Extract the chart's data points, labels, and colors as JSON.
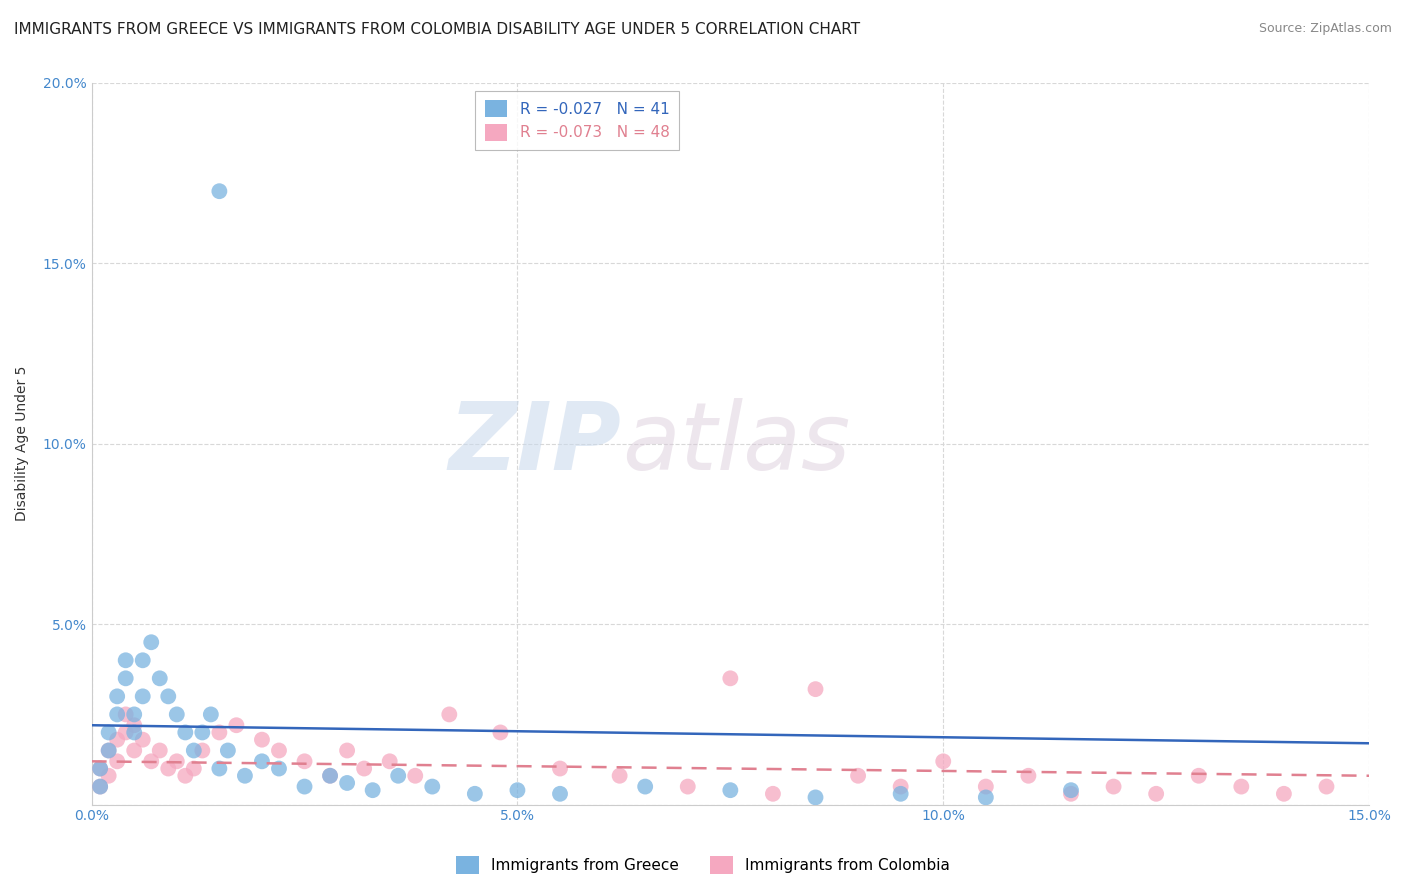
{
  "title": "IMMIGRANTS FROM GREECE VS IMMIGRANTS FROM COLOMBIA DISABILITY AGE UNDER 5 CORRELATION CHART",
  "source": "Source: ZipAtlas.com",
  "ylabel": "Disability Age Under 5",
  "xlim": [
    0,
    0.15
  ],
  "ylim": [
    0,
    0.2
  ],
  "xticks": [
    0.0,
    0.05,
    0.1,
    0.15
  ],
  "xtick_labels": [
    "0.0%",
    "5.0%",
    "10.0%",
    "15.0%"
  ],
  "yticks": [
    0.0,
    0.05,
    0.1,
    0.15,
    0.2
  ],
  "ytick_labels": [
    "",
    "5.0%",
    "10.0%",
    "15.0%",
    "20.0%"
  ],
  "greece_color": "#7ab3e0",
  "colombia_color": "#f5a8c0",
  "greece_line_color": "#3366bb",
  "colombia_line_color": "#e08090",
  "greece_R": -0.027,
  "greece_N": 41,
  "colombia_R": -0.073,
  "colombia_N": 48,
  "greece_scatter_x": [
    0.001,
    0.001,
    0.002,
    0.002,
    0.003,
    0.003,
    0.004,
    0.004,
    0.005,
    0.005,
    0.006,
    0.006,
    0.007,
    0.008,
    0.009,
    0.01,
    0.011,
    0.012,
    0.013,
    0.014,
    0.015,
    0.016,
    0.018,
    0.02,
    0.022,
    0.025,
    0.028,
    0.03,
    0.033,
    0.036,
    0.04,
    0.045,
    0.05,
    0.055,
    0.065,
    0.075,
    0.085,
    0.095,
    0.105,
    0.115,
    0.015
  ],
  "greece_scatter_y": [
    0.005,
    0.01,
    0.015,
    0.02,
    0.025,
    0.03,
    0.035,
    0.04,
    0.02,
    0.025,
    0.03,
    0.04,
    0.045,
    0.035,
    0.03,
    0.025,
    0.02,
    0.015,
    0.02,
    0.025,
    0.01,
    0.015,
    0.008,
    0.012,
    0.01,
    0.005,
    0.008,
    0.006,
    0.004,
    0.008,
    0.005,
    0.003,
    0.004,
    0.003,
    0.005,
    0.004,
    0.002,
    0.003,
    0.002,
    0.004,
    0.17
  ],
  "colombia_scatter_x": [
    0.001,
    0.001,
    0.002,
    0.002,
    0.003,
    0.003,
    0.004,
    0.004,
    0.005,
    0.005,
    0.006,
    0.007,
    0.008,
    0.009,
    0.01,
    0.011,
    0.012,
    0.013,
    0.015,
    0.017,
    0.02,
    0.022,
    0.025,
    0.028,
    0.03,
    0.032,
    0.035,
    0.038,
    0.042,
    0.048,
    0.055,
    0.062,
    0.07,
    0.075,
    0.08,
    0.085,
    0.09,
    0.095,
    0.1,
    0.105,
    0.11,
    0.115,
    0.12,
    0.125,
    0.13,
    0.135,
    0.14,
    0.145
  ],
  "colombia_scatter_y": [
    0.005,
    0.01,
    0.008,
    0.015,
    0.012,
    0.018,
    0.02,
    0.025,
    0.015,
    0.022,
    0.018,
    0.012,
    0.015,
    0.01,
    0.012,
    0.008,
    0.01,
    0.015,
    0.02,
    0.022,
    0.018,
    0.015,
    0.012,
    0.008,
    0.015,
    0.01,
    0.012,
    0.008,
    0.025,
    0.02,
    0.01,
    0.008,
    0.005,
    0.035,
    0.003,
    0.032,
    0.008,
    0.005,
    0.012,
    0.005,
    0.008,
    0.003,
    0.005,
    0.003,
    0.008,
    0.005,
    0.003,
    0.005
  ],
  "greece_trend_x": [
    0.0,
    0.15
  ],
  "greece_trend_y": [
    0.022,
    0.017
  ],
  "colombia_trend_x": [
    0.0,
    0.15
  ],
  "colombia_trend_y": [
    0.012,
    0.008
  ],
  "watermark_zip": "ZIP",
  "watermark_atlas": "atlas",
  "background_color": "#ffffff",
  "grid_color": "#d8d8d8",
  "axis_color": "#cccccc",
  "tick_color": "#4488cc",
  "title_fontsize": 11,
  "label_fontsize": 10,
  "source_fontsize": 9,
  "legend_fontsize": 11
}
